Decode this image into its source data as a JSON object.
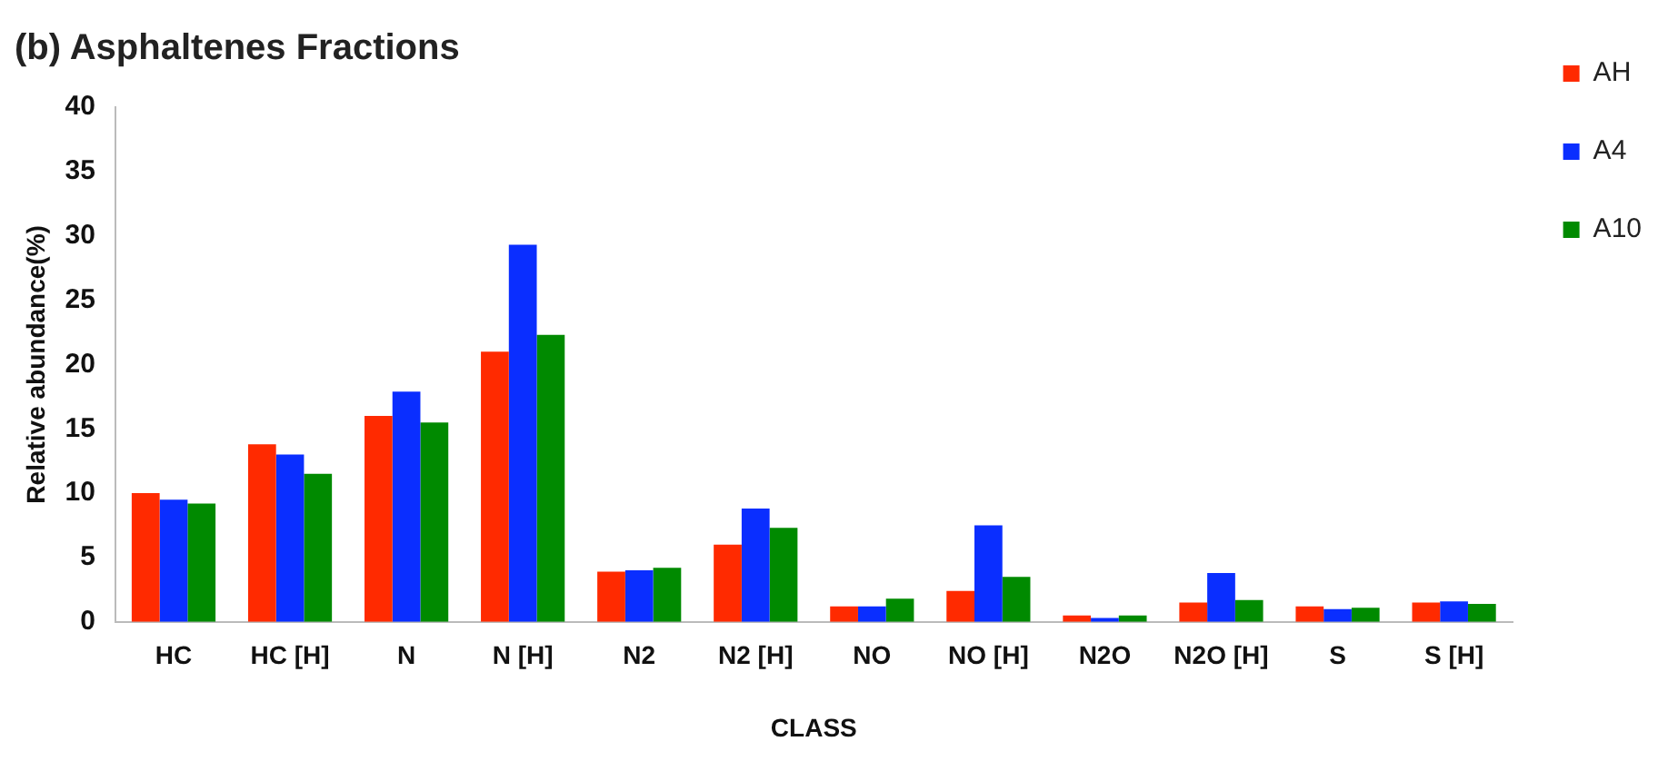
{
  "chart_data": {
    "type": "bar",
    "title": "(b) Asphaltenes Fractions",
    "xlabel": "CLASS",
    "ylabel": "Relative abundance(%)",
    "categories": [
      "HC",
      "HC [H]",
      "N",
      "N [H]",
      "N2",
      "N2 [H]",
      "NO",
      "NO [H]",
      "N2O",
      "N2O [H]",
      "S",
      "S [H]"
    ],
    "series": [
      {
        "name": "AH",
        "color": "#ff2a00",
        "values": [
          10.0,
          13.8,
          16.0,
          21.0,
          3.9,
          6.0,
          1.2,
          2.4,
          0.5,
          1.5,
          1.2,
          1.5
        ]
      },
      {
        "name": "A4",
        "color": "#0a2eff",
        "values": [
          9.5,
          13.0,
          17.9,
          29.3,
          4.0,
          8.8,
          1.2,
          7.5,
          0.3,
          3.8,
          1.0,
          1.6
        ]
      },
      {
        "name": "A10",
        "color": "#008a00",
        "values": [
          9.2,
          11.5,
          15.5,
          22.3,
          4.2,
          7.3,
          1.8,
          3.5,
          0.5,
          1.7,
          1.1,
          1.4
        ]
      }
    ],
    "ylim": [
      0,
      40
    ],
    "yticks": [
      0,
      5,
      10,
      15,
      20,
      25,
      30,
      35,
      40
    ],
    "grid": false,
    "legend": "top right"
  }
}
